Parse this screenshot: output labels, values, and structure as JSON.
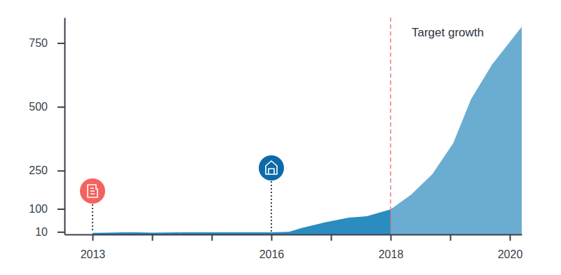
{
  "chart_data": {
    "type": "area",
    "x": [
      2013,
      2013.25,
      2013.5,
      2013.75,
      2014,
      2014.5,
      2015,
      2015.5,
      2016,
      2016.3,
      2016.5,
      2016.9,
      2017.3,
      2017.6,
      2018,
      2018.35,
      2018.7,
      2019.05,
      2019.35,
      2019.7,
      2020.2
    ],
    "xlim": [
      2012.53,
      2020.2
    ],
    "xticks": [
      2013,
      {
        "value": 2014,
        "label": null
      },
      {
        "value": 2015,
        "label": null
      },
      2016,
      {
        "value": 2017,
        "label": null
      },
      2018,
      {
        "value": 2019,
        "label": null
      },
      2020
    ],
    "ylim": [
      0,
      850
    ],
    "yticks": [
      10,
      100,
      250,
      500,
      750
    ],
    "series": [
      {
        "color": "#2b8cbf",
        "values": [
          6,
          7,
          8,
          8,
          7,
          8,
          8,
          8,
          8,
          10,
          25,
          47,
          66,
          71,
          98,
          null,
          null,
          null,
          null,
          null,
          null
        ]
      },
      {
        "color": "#6aadd0",
        "values": [
          null,
          null,
          null,
          null,
          null,
          null,
          null,
          null,
          null,
          null,
          null,
          null,
          null,
          null,
          98,
          157,
          236,
          357,
          530,
          665,
          814
        ]
      }
    ],
    "annotations": [
      {
        "x": 2018,
        "label": "Target growth",
        "color": "#e8696b",
        "line_style": "dashed"
      }
    ],
    "events": [
      {
        "x": 2013,
        "color": "#f4625f",
        "marker": "document"
      },
      {
        "x": 2016,
        "color": "#0d6aa8",
        "marker": "house"
      }
    ]
  }
}
